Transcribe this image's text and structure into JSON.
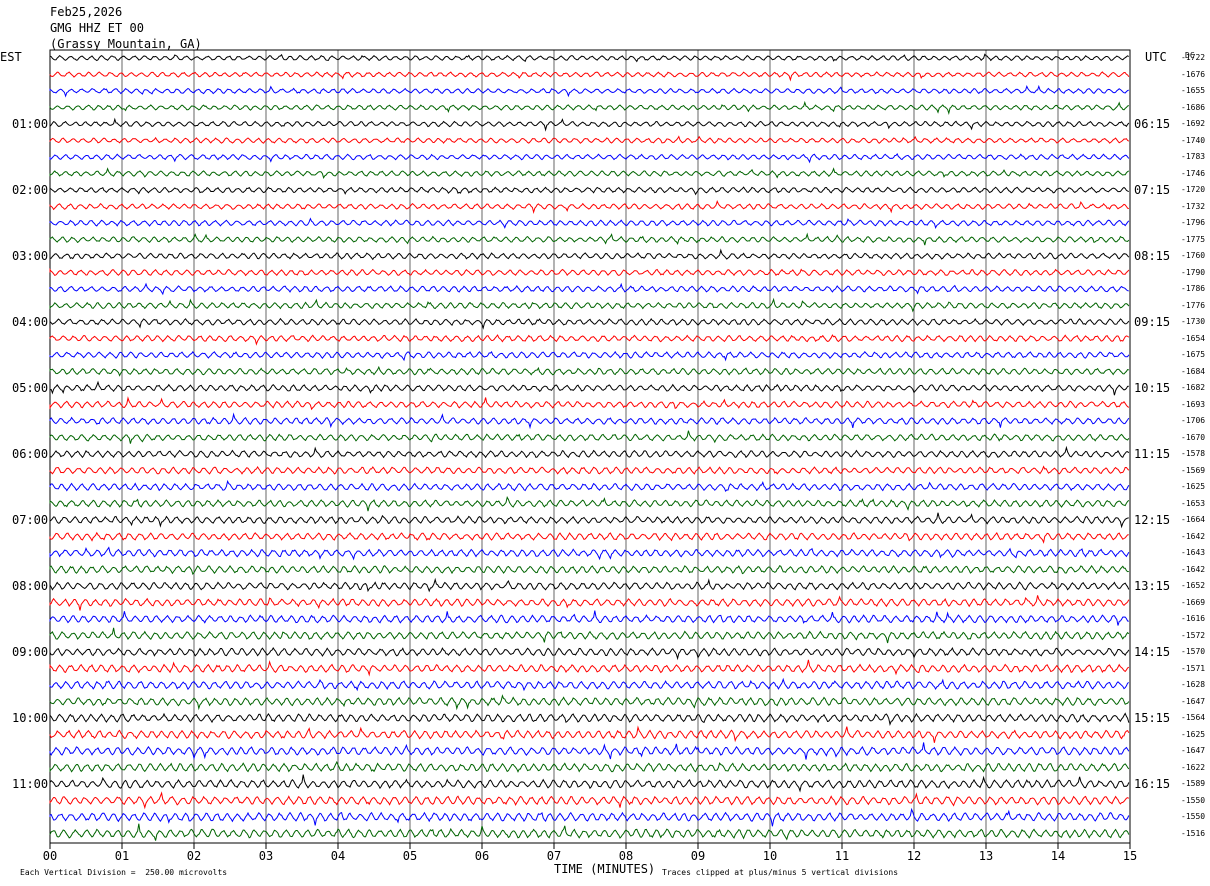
{
  "header": {
    "date": "Feb25,2026",
    "station": "GMG HHZ ET 00",
    "location": "(Grassy Mountain, GA)"
  },
  "left_tz": "EST",
  "right_tz": "UTC",
  "dc_header": "DC",
  "footer": {
    "scale": "Each Vertical Division =  250.00 microvolts",
    "xlabel": "TIME (MINUTES)",
    "clip": "Traces clipped at plus/minus 5 vertical divisions"
  },
  "colors": {
    "cycle": [
      "#000000",
      "#ff0000",
      "#0000ff",
      "#006400"
    ]
  },
  "chart_data": {
    "type": "line",
    "title": "GMG HHZ ET 00 (Grassy Mountain, GA) Feb25,2026",
    "xlabel": "TIME (MINUTES)",
    "xlim": [
      0,
      15
    ],
    "x_ticks": [
      "00",
      "01",
      "02",
      "03",
      "04",
      "05",
      "06",
      "07",
      "08",
      "09",
      "10",
      "11",
      "12",
      "13",
      "14",
      "15"
    ],
    "grid": true,
    "row_count": 48,
    "left_time_labels": [
      "01:00",
      "02:00",
      "03:00",
      "04:00",
      "05:00",
      "06:00",
      "07:00",
      "08:00",
      "09:00",
      "10:00",
      "11:00"
    ],
    "right_time_labels": [
      "06:15",
      "07:15",
      "08:15",
      "09:15",
      "10:15",
      "11:15",
      "12:15",
      "13:15",
      "14:15",
      "15:15",
      "16:15"
    ],
    "dc_offsets": [
      -1722,
      -1676,
      -1655,
      -1686,
      -1692,
      -1740,
      -1783,
      -1746,
      -1720,
      -1732,
      -1796,
      -1775,
      -1760,
      -1790,
      -1786,
      -1776,
      -1730,
      -1654,
      -1675,
      -1684,
      -1682,
      -1693,
      -1706,
      -1670,
      -1578,
      -1569,
      -1625,
      -1653,
      -1664,
      -1642,
      -1643,
      -1642,
      -1652,
      -1669,
      -1616,
      -1572,
      -1570,
      -1571,
      -1628,
      -1647,
      -1564,
      -1625,
      -1647,
      -1622,
      -1589,
      -1550,
      -1550,
      -1516
    ]
  }
}
